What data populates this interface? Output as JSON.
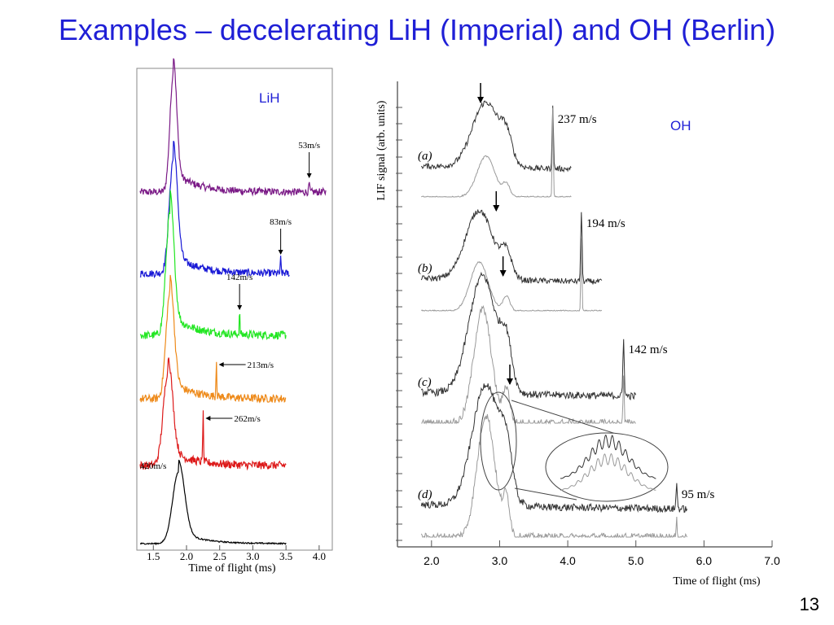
{
  "slide": {
    "title": "Examples – decelerating LiH (Imperial) and OH (Berlin)",
    "page_number": "13"
  },
  "chart_data": [
    {
      "type": "line",
      "panel_label": "LiH",
      "xlabel": "Time of flight (ms)",
      "xlim": [
        1.3,
        4.1
      ],
      "xticks": [
        "1.5",
        "2.0",
        "2.5",
        "3.0",
        "3.5",
        "4.0"
      ],
      "tick_values": [
        1.5,
        2.0,
        2.5,
        3.0,
        3.5,
        4.0
      ],
      "grid": false,
      "series": [
        {
          "label": "53m/s",
          "color": "#7b1b87",
          "main_peak_ms": 1.8,
          "x_start": 1.3,
          "x_end": 4.1,
          "decelerated_peak_ms": 3.85
        },
        {
          "label": "83m/s",
          "color": "#1a1ad6",
          "main_peak_ms": 1.8,
          "x_start": 1.3,
          "x_end": 3.55,
          "decelerated_peak_ms": 3.42
        },
        {
          "label": "142m/s",
          "color": "#22e622",
          "main_peak_ms": 1.75,
          "x_start": 1.3,
          "x_end": 3.5,
          "decelerated_peak_ms": 2.8
        },
        {
          "label": "213m/s",
          "color": "#ee8a1a",
          "main_peak_ms": 1.75,
          "x_start": 1.3,
          "x_end": 3.5,
          "decelerated_peak_ms": 2.45
        },
        {
          "label": "262m/s",
          "color": "#dd1a1a",
          "main_peak_ms": 1.72,
          "x_start": 1.3,
          "x_end": 3.5,
          "decelerated_peak_ms": 2.25
        },
        {
          "label": "420m/s",
          "color": "#000000",
          "main_peak_ms": 1.88,
          "x_start": 1.3,
          "x_end": 3.5,
          "decelerated_peak_ms": null
        }
      ]
    },
    {
      "type": "line",
      "panel_label": "OH",
      "xlabel": "Time of flight (ms)",
      "ylabel": "LIF signal (arb. units)",
      "xlim": [
        1.5,
        7.0
      ],
      "xticks": [
        "2.0",
        "3.0",
        "4.0",
        "5.0",
        "6.0",
        "7.0"
      ],
      "tick_values": [
        2.0,
        3.0,
        4.0,
        5.0,
        6.0,
        7.0
      ],
      "grid": false,
      "series": [
        {
          "label": "(a)",
          "velocity": "237 m/s",
          "color": "#333333",
          "decelerated_peak_ms": 3.78,
          "arrow_ms": 2.72,
          "x_end": 4.05
        },
        {
          "label": "(b)",
          "velocity": "194 m/s",
          "color": "#333333",
          "decelerated_peak_ms": 4.2,
          "arrow_ms": 2.95,
          "x_end": 4.5
        },
        {
          "label": "(c)",
          "velocity": "142 m/s",
          "color": "#333333",
          "decelerated_peak_ms": 4.82,
          "arrow_ms": 3.05,
          "x_end": 5.0
        },
        {
          "label": "(d)",
          "velocity": "95 m/s",
          "color": "#333333",
          "decelerated_peak_ms": 5.6,
          "arrow_ms": 3.15,
          "x_end": 5.75
        }
      ]
    }
  ]
}
